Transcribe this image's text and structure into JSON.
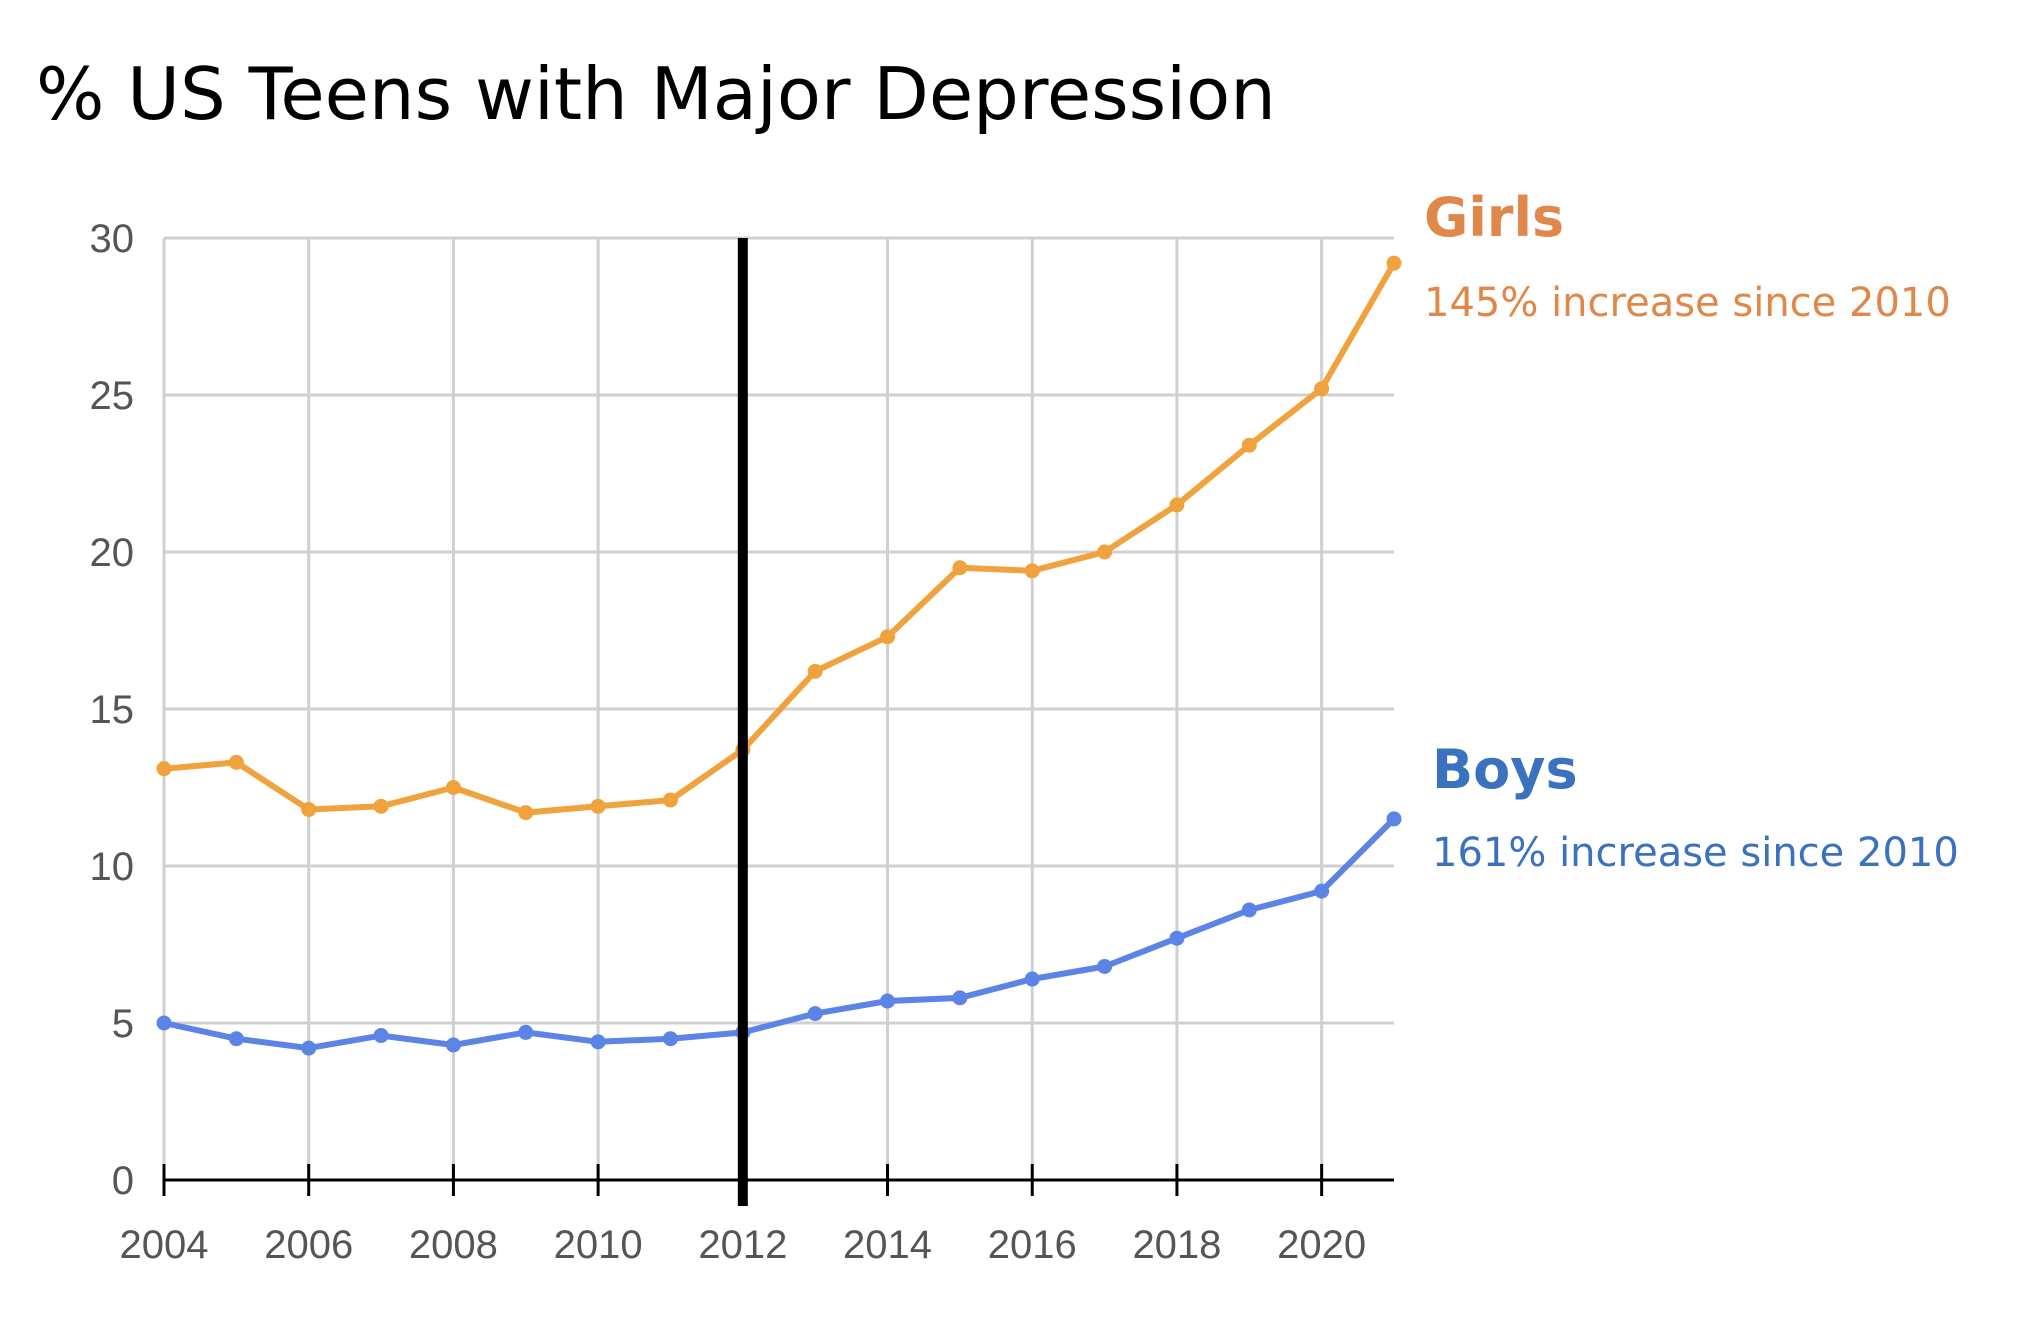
{
  "chart_data": {
    "type": "line",
    "title": "% US Teens with Major Depression",
    "xlim": [
      2004,
      2021
    ],
    "ylim": [
      0,
      30
    ],
    "x_ticks": [
      2004,
      2006,
      2008,
      2010,
      2012,
      2014,
      2016,
      2018,
      2020
    ],
    "y_ticks": [
      0,
      5,
      10,
      15,
      20,
      25,
      30
    ],
    "grid": true,
    "vertical_marker": 2012,
    "x": [
      2004,
      2005,
      2006,
      2007,
      2008,
      2009,
      2010,
      2011,
      2012,
      2013,
      2014,
      2015,
      2016,
      2017,
      2018,
      2019,
      2020,
      2021
    ],
    "series": [
      {
        "name": "Girls",
        "annotation": "145% increase since 2010",
        "color": "#f0a23c",
        "label_color": "#e0884a",
        "values": [
          13.1,
          13.3,
          11.8,
          11.9,
          12.5,
          11.7,
          11.9,
          12.1,
          13.7,
          16.2,
          17.3,
          19.5,
          19.4,
          20.0,
          21.5,
          23.4,
          25.2,
          29.2
        ]
      },
      {
        "name": "Boys",
        "annotation": "161% increase since 2010",
        "color": "#5b84e6",
        "label_color": "#3a72bf",
        "values": [
          5.0,
          4.5,
          4.2,
          4.6,
          4.3,
          4.7,
          4.4,
          4.5,
          4.7,
          5.3,
          5.7,
          5.8,
          6.4,
          6.8,
          7.7,
          8.6,
          9.2,
          11.5
        ]
      }
    ]
  }
}
